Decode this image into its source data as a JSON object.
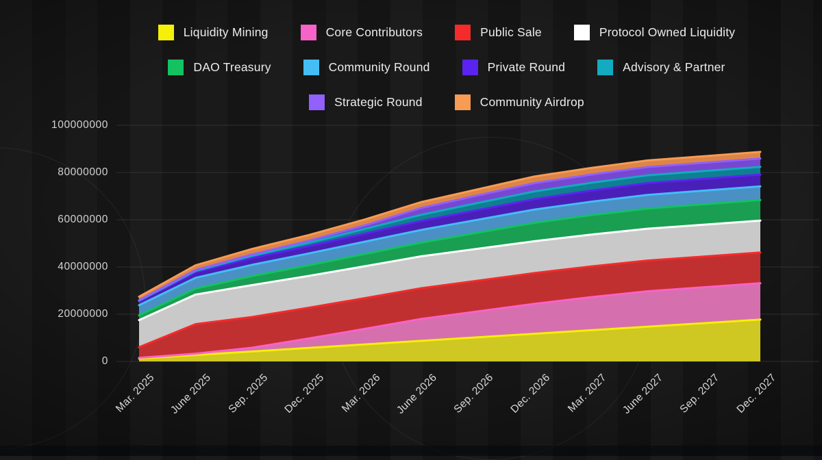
{
  "chart_data": {
    "type": "area",
    "stacked": true,
    "title": "",
    "xlabel": "",
    "ylabel": "",
    "grid": true,
    "legend_position": "top",
    "legend_rows": [
      [
        0,
        1,
        2,
        3
      ],
      [
        4,
        5,
        6,
        7
      ],
      [
        8,
        9
      ]
    ],
    "ylim": [
      0,
      100000000
    ],
    "y_ticks": [
      {
        "value": 0,
        "label": "0"
      },
      {
        "value": 20000000,
        "label": "20000000"
      },
      {
        "value": 40000000,
        "label": "40000000"
      },
      {
        "value": 60000000,
        "label": "60000000"
      },
      {
        "value": 80000000,
        "label": "80000000"
      },
      {
        "value": 100000000,
        "label": "100000000"
      }
    ],
    "x": [
      "Mar. 2025",
      "June 2025",
      "Sep. 2025",
      "Dec. 2025",
      "Mar. 2026",
      "June 2026",
      "Sep. 2026",
      "Dec. 2026",
      "Mar. 2027",
      "June 2027",
      "Sep. 2027",
      "Dec. 2027"
    ],
    "series": [
      {
        "name": "Liquidity Mining",
        "color": "#f6ef0a",
        "fill": "#cfc722",
        "values": [
          1500000,
          3000000,
          4500000,
          6000000,
          7500000,
          9000000,
          10500000,
          12000000,
          13500000,
          15000000,
          16500000,
          18000000
        ]
      },
      {
        "name": "Core Contributors",
        "color": "#f763c8",
        "fill": "#d66fae",
        "values": [
          300000,
          600000,
          1600000,
          4000000,
          6600000,
          9300000,
          11000000,
          12700000,
          14000000,
          15000000,
          15200000,
          15400000
        ]
      },
      {
        "name": "Public Sale",
        "color": "#f32b2b",
        "fill": "#c13030",
        "values": [
          4500000,
          12500000,
          13000000,
          13000000,
          13000000,
          13000000,
          13000000,
          13000000,
          13000000,
          13000000,
          13000000,
          13000000
        ]
      },
      {
        "name": "Protocol Owned Liquidity",
        "color": "#ffffff",
        "fill": "#c9c9c9",
        "values": [
          11500000,
          12500000,
          13500000,
          13500000,
          13500000,
          13500000,
          13500000,
          13500000,
          13500000,
          13500000,
          13500000,
          13500000
        ]
      },
      {
        "name": "DAO Treasury",
        "color": "#13c261",
        "fill": "#1a9e52",
        "values": [
          2000000,
          2500000,
          3800000,
          4500000,
          5200000,
          5800000,
          6800000,
          7800000,
          8200000,
          8500000,
          8600000,
          8700000
        ]
      },
      {
        "name": "Community Round",
        "color": "#45bdf5",
        "fill": "#4a90c4",
        "values": [
          4300000,
          4600000,
          4800000,
          5000000,
          5200000,
          5400000,
          5500000,
          5600000,
          5700000,
          5800000,
          5800000,
          5800000
        ]
      },
      {
        "name": "Private Round",
        "color": "#5a23ef",
        "fill": "#4a1fb8",
        "values": [
          1700000,
          2400000,
          2900000,
          3100000,
          3400000,
          3800000,
          4100000,
          4400000,
          4700000,
          5000000,
          5000000,
          5000000
        ]
      },
      {
        "name": "Advisory & Partner",
        "color": "#14aabf",
        "fill": "#0f7f91",
        "values": [
          200000,
          500000,
          900000,
          1400000,
          2000000,
          2600000,
          3000000,
          3300000,
          3300000,
          3300000,
          3300000,
          3300000
        ]
      },
      {
        "name": "Strategic Round",
        "color": "#9260fa",
        "fill": "#7747d1",
        "values": [
          200000,
          400000,
          600000,
          900000,
          1500000,
          2900000,
          3200000,
          3500000,
          3500000,
          3500000,
          3500000,
          3500000
        ]
      },
      {
        "name": "Community Airdrop",
        "color": "#f79b55",
        "fill": "#dd8547",
        "values": [
          1500000,
          2000000,
          2300000,
          2400000,
          2500000,
          2500000,
          2600000,
          2800000,
          2800000,
          2800000,
          2800000,
          2800000
        ]
      }
    ],
    "colors": {
      "background": "#1a1a1a",
      "gridline": "#454545",
      "tick_text": "#d2d2d2",
      "legend_text": "#ececec"
    }
  },
  "layout_note_values_visible_only": true
}
